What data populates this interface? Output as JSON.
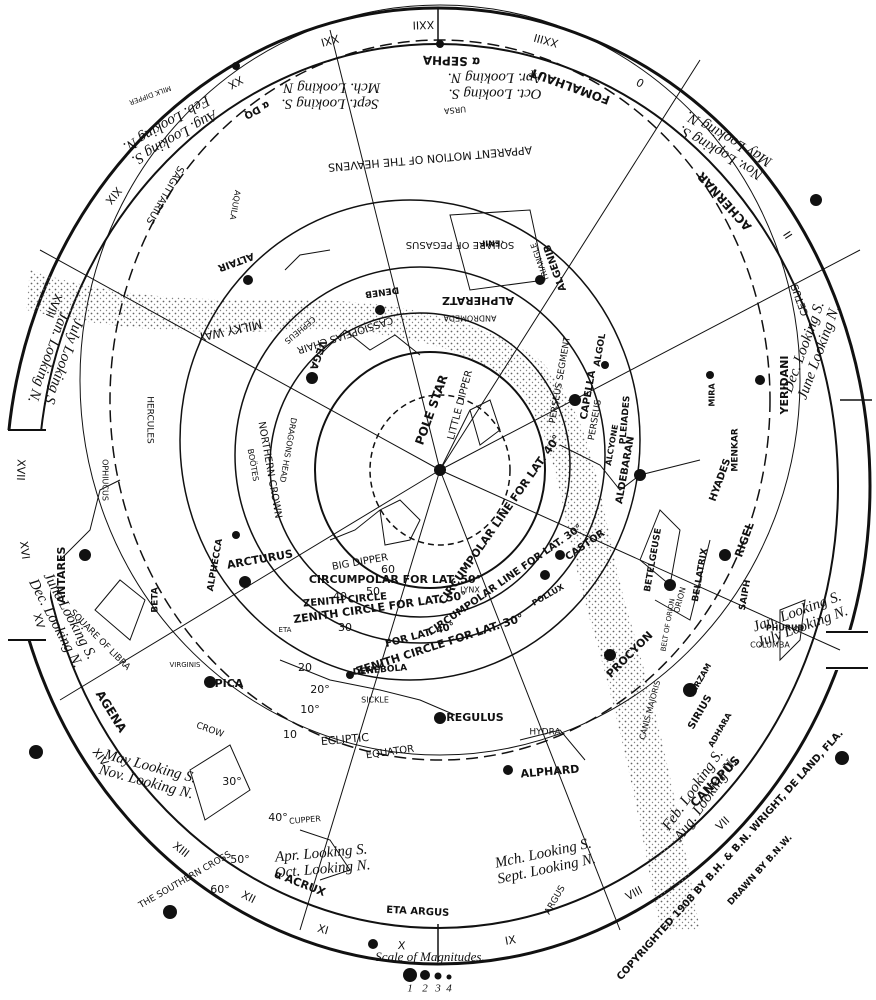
{
  "hours": [
    "XXIII",
    "XXII",
    "XXI",
    "XX",
    "XIX",
    "XVIII",
    "XVII",
    "XVI",
    "XV",
    "XIV",
    "XIII",
    "XII",
    "XI",
    "X",
    "IX",
    "VIII",
    "VII",
    "0",
    "I",
    "II"
  ],
  "ring_stars": [
    "α SEPHA",
    "FOMALHAUT",
    "ACHERNAR",
    "CANOPUS",
    "ETA ARGUS",
    "α ACRUX",
    "AGENA",
    "α DQ"
  ],
  "stars": [
    "POLE STAR",
    "VEGA",
    "ALTAIR",
    "DENEB",
    "ALPHERATZ",
    "ALGENIB",
    "ARCTURUS",
    "SPICA",
    "DENEBOLA",
    "REGULUS",
    "ALPHARD",
    "PROCYON",
    "SIRIUS",
    "BETELGEUSE",
    "BELLATRIX",
    "RIGEL",
    "ALDEBARAN",
    "CAPELLA",
    "CASTOR",
    "POLLUX",
    "ALGOL",
    "MIRA",
    "ANTARES",
    "ALPHECCA",
    "MENKAR",
    "SAIPH",
    "ALCYONE",
    "ENIF",
    "BETA",
    "HYADES",
    "PLEIADES",
    "YERIDANI",
    "PHURUD",
    "ADHARA",
    "MIRZAM"
  ],
  "constellations": [
    "LITTLE DIPPER",
    "BIG DIPPER",
    "CASSIOPEIAS CHAIR",
    "ANDROMEDA",
    "SQUARE OF PEGASUS",
    "APPARENT MOTION OF THE HEAVENS",
    "MILKY WAY",
    "SAGITTARIUS",
    "NORTHERN CROWN",
    "HERCULES",
    "OPHIUCUS",
    "SQUARE OF LIBRA",
    "SICKLE",
    "HYDRA",
    "CROW",
    "CUPPER",
    "THE SOUTHERN CROSS",
    "COLUMBA",
    "CETUS",
    "DRAGONS HEAD",
    "CEPHEUS",
    "AQUILA",
    "BOÖTES",
    "PERSEUS",
    "PERSEUS SEGMENT",
    "ECLIPTIC",
    "EQUATOR",
    "ARGUS",
    "ORION",
    "BELT OF ORION",
    "MILK DIPPER",
    "TRIANGLE",
    "LYNX",
    "VIRGINIS",
    "CANIS MAJORIS",
    "ETA",
    "URSA"
  ],
  "circles": [
    "CIRCUMPOLAR LINE FOR LAT. 40°",
    "CIRCUMPOLAR FOR LAT. 50°",
    "ZENITH CIRCLE FOR LAT. 50°",
    "ZENITH CIRCLE",
    "FOR LAT. 40°",
    "CIRCUMPOLAR LINE FOR LAT. 30°",
    "ZENITH CIRCLE FOR LAT. 30°"
  ],
  "degrees": [
    "10",
    "20",
    "30",
    "40",
    "50",
    "60",
    "30°",
    "40°",
    "50°",
    "60°",
    "10°",
    "20°"
  ],
  "months": [
    [
      "Sept. Looking S.",
      "Mch. Looking N."
    ],
    [
      "Oct. Looking S.",
      "Apr. Looking N."
    ],
    [
      "Nov. Looking S.",
      "May Looking N."
    ],
    [
      "Dec. Looking S.",
      "June Looking N."
    ],
    [
      "Jan. Looking S.",
      "July Looking N."
    ],
    [
      "Feb. Looking S.",
      "Aug. Looking N."
    ],
    [
      "Mch. Looking S.",
      "Sept. Looking N."
    ],
    [
      "Apr. Looking S.",
      "Oct. Looking N."
    ],
    [
      "May Looking S.",
      "Nov. Looking N."
    ],
    [
      "June Looking S.",
      "Dec. Looking N."
    ],
    [
      "July Looking S.",
      "Jan. Looking N."
    ],
    [
      "Aug. Looking S.",
      "Feb. Looking N."
    ]
  ],
  "footer": {
    "copyright": "COPYRIGHTED 1908 BY B.H. & B.N. WRIGHT, DE LAND, FLA.",
    "drawn": "DRAWN BY B.N.W.",
    "scale_title": "Scale of Magnitudes.",
    "scale": [
      "1",
      "2",
      "3",
      "4"
    ]
  }
}
